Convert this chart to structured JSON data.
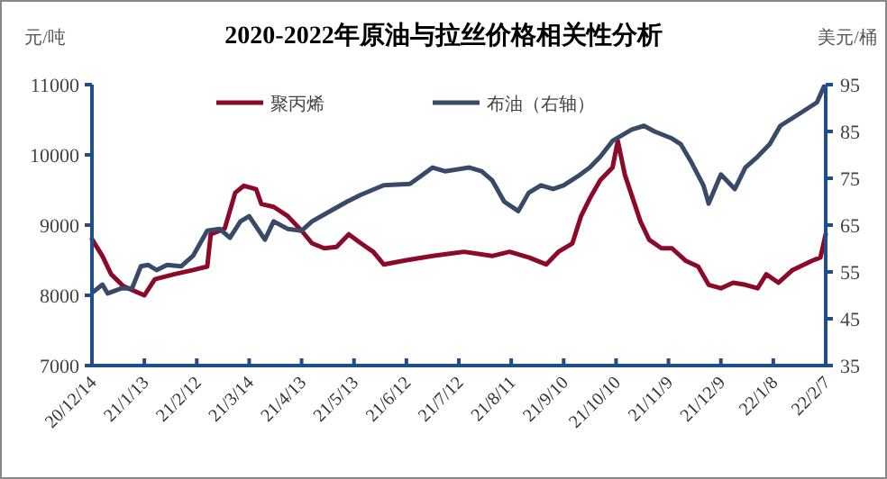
{
  "chart_data": {
    "type": "line",
    "title": "2020-2022年原油与拉丝价格相关性分析",
    "ylabel": "元/吨",
    "y2label": "美元/桶",
    "xlim": [
      "2020-12-14",
      "2022-02-07"
    ],
    "xticks": [
      {
        "value": "2020-12-14",
        "label": "20/12/14"
      },
      {
        "value": "2021-01-13",
        "label": "21/1/13"
      },
      {
        "value": "2021-02-12",
        "label": "21/2/12"
      },
      {
        "value": "2021-03-14",
        "label": "21/3/14"
      },
      {
        "value": "2021-04-13",
        "label": "21/4/13"
      },
      {
        "value": "2021-05-13",
        "label": "21/5/13"
      },
      {
        "value": "2021-06-12",
        "label": "21/6/12"
      },
      {
        "value": "2021-07-12",
        "label": "21/7/12"
      },
      {
        "value": "2021-08-11",
        "label": "21/8/11"
      },
      {
        "value": "2021-09-10",
        "label": "21/9/10"
      },
      {
        "value": "2021-10-10",
        "label": "21/10/10"
      },
      {
        "value": "2021-11-09",
        "label": "21/11/9"
      },
      {
        "value": "2021-12-09",
        "label": "21/12/9"
      },
      {
        "value": "2022-01-08",
        "label": "22/1/8"
      },
      {
        "value": "2022-02-07",
        "label": "22/2/7"
      }
    ],
    "ylim": [
      7000,
      11000
    ],
    "yticks": [
      7000,
      8000,
      9000,
      10000,
      11000
    ],
    "y2lim": [
      35,
      95
    ],
    "y2ticks": [
      35,
      45,
      55,
      65,
      75,
      85,
      95
    ],
    "legend": "top",
    "grid": false,
    "series": [
      {
        "name": "聚丙烯",
        "color": "#8b0a2a",
        "x": [
          "2020-12-14",
          "2020-12-20",
          "2020-12-25",
          "2021-01-01",
          "2021-01-13",
          "2021-01-19",
          "2021-01-30",
          "2021-02-10",
          "2021-02-18",
          "2021-02-20",
          "2021-02-28",
          "2021-03-06",
          "2021-03-11",
          "2021-03-18",
          "2021-03-21",
          "2021-03-28",
          "2021-04-05",
          "2021-04-13",
          "2021-04-19",
          "2021-04-26",
          "2021-05-03",
          "2021-05-10",
          "2021-05-17",
          "2021-05-24",
          "2021-05-30",
          "2021-06-12",
          "2021-06-27",
          "2021-07-15",
          "2021-07-31",
          "2021-08-10",
          "2021-08-21",
          "2021-08-31",
          "2021-09-07",
          "2021-09-15",
          "2021-09-20",
          "2021-09-25",
          "2021-10-01",
          "2021-10-08",
          "2021-10-11",
          "2021-10-15",
          "2021-10-24",
          "2021-10-29",
          "2021-11-05",
          "2021-11-11",
          "2021-11-19",
          "2021-11-26",
          "2021-12-02",
          "2021-12-09",
          "2021-12-16",
          "2021-12-23",
          "2021-12-30",
          "2022-01-04",
          "2022-01-11",
          "2022-01-19",
          "2022-01-30",
          "2022-02-04",
          "2022-02-07"
        ],
        "values": [
          8800,
          8560,
          8300,
          8130,
          8000,
          8230,
          8300,
          8360,
          8410,
          8870,
          8950,
          9460,
          9560,
          9510,
          9300,
          9260,
          9130,
          8920,
          8740,
          8670,
          8690,
          8870,
          8740,
          8620,
          8440,
          8500,
          8560,
          8620,
          8560,
          8620,
          8540,
          8440,
          8620,
          8740,
          9130,
          9380,
          9640,
          9820,
          10200,
          9720,
          9050,
          8790,
          8670,
          8670,
          8490,
          8410,
          8150,
          8100,
          8180,
          8150,
          8100,
          8300,
          8180,
          8360,
          8490,
          8540,
          8870
        ]
      },
      {
        "name": "布油（右轴）",
        "color": "#394a68",
        "axis": "y2",
        "x": [
          "2020-12-15",
          "2020-12-20",
          "2020-12-23",
          "2020-12-31",
          "2021-01-06",
          "2021-01-11",
          "2021-01-15",
          "2021-01-20",
          "2021-01-26",
          "2021-02-03",
          "2021-02-10",
          "2021-02-18",
          "2021-02-25",
          "2021-03-03",
          "2021-03-09",
          "2021-03-14",
          "2021-03-23",
          "2021-03-28",
          "2021-04-05",
          "2021-04-13",
          "2021-04-19",
          "2021-04-28",
          "2021-05-09",
          "2021-05-17",
          "2021-05-30",
          "2021-06-14",
          "2021-06-20",
          "2021-06-27",
          "2021-07-04",
          "2021-07-18",
          "2021-07-25",
          "2021-07-31",
          "2021-08-07",
          "2021-08-15",
          "2021-08-21",
          "2021-08-28",
          "2021-09-04",
          "2021-09-10",
          "2021-09-18",
          "2021-09-25",
          "2021-10-01",
          "2021-10-08",
          "2021-10-19",
          "2021-10-26",
          "2021-11-01",
          "2021-11-11",
          "2021-11-16",
          "2021-11-22",
          "2021-11-29",
          "2021-12-02",
          "2021-12-09",
          "2021-12-17",
          "2021-12-23",
          "2021-12-30",
          "2022-01-06",
          "2022-01-12",
          "2022-01-23",
          "2022-02-02",
          "2022-02-06"
        ],
        "values": [
          50.8,
          52.3,
          50.4,
          51.5,
          51.5,
          56.2,
          56.5,
          55.4,
          56.5,
          56.2,
          58.5,
          63.8,
          64.2,
          62.3,
          65.8,
          66.9,
          61.9,
          65.8,
          64.2,
          63.8,
          65.8,
          67.7,
          70,
          71.5,
          73.5,
          73.8,
          75.4,
          77.3,
          76.5,
          77.3,
          76.5,
          74.6,
          70,
          68,
          71.9,
          73.5,
          72.7,
          73.5,
          75.4,
          77.3,
          79.6,
          83,
          85.4,
          86.2,
          85,
          83.5,
          82.3,
          78.5,
          73.5,
          69.6,
          75.8,
          72.7,
          77.3,
          79.6,
          82.3,
          86.2,
          88.8,
          91.2,
          94.6
        ]
      }
    ]
  }
}
